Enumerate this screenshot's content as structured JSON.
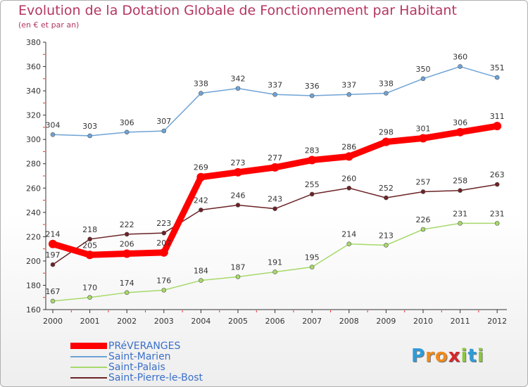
{
  "chart_data": {
    "type": "line",
    "title": "Evolution de la Dotation Globale de Fonctionnement par Habitant",
    "subtitle": "(en € et par an)",
    "xlabel": "",
    "ylabel": "",
    "ylim": [
      160,
      380
    ],
    "yticks": [
      160,
      180,
      200,
      220,
      240,
      260,
      280,
      300,
      320,
      340,
      360,
      380
    ],
    "x": [
      "2000",
      "2001",
      "2002",
      "2003",
      "2004",
      "2005",
      "2006",
      "2007",
      "2008",
      "2009",
      "2010",
      "2011",
      "2012"
    ],
    "series": [
      {
        "name": "Saint-Marien",
        "color": "#6fa3d6",
        "highlight": false,
        "values": [
          304,
          303,
          306,
          307,
          338,
          342,
          337,
          336,
          337,
          338,
          350,
          360,
          351
        ]
      },
      {
        "name": "Saint-Pierre-le-Bost",
        "color": "#6b2226",
        "highlight": false,
        "values": [
          197,
          218,
          222,
          223,
          242,
          246,
          243,
          255,
          260,
          252,
          257,
          258,
          263
        ]
      },
      {
        "name": "Saint-Palais",
        "color": "#a6d96a",
        "highlight": false,
        "values": [
          167,
          170,
          174,
          176,
          184,
          187,
          191,
          195,
          214,
          213,
          226,
          231,
          231
        ]
      },
      {
        "name": "PRéVERANGES",
        "color": "#ff0000",
        "highlight": true,
        "values": [
          214,
          205,
          206,
          207,
          269,
          273,
          277,
          283,
          286,
          298,
          301,
          306,
          311
        ]
      }
    ],
    "legend": [
      "PRéVERANGES",
      "Saint-Marien",
      "Saint-Palais",
      "Saint-Pierre-le-Bost"
    ],
    "legend_position": "bottom-left",
    "grid": false
  },
  "logo": {
    "letters": [
      "P",
      "r",
      "o",
      "x",
      "i",
      "t",
      "i"
    ],
    "colors": [
      "#2f9bd8",
      "#f08a1c",
      "#f08a1c",
      "#d7262a",
      "#8cc63f",
      "#2f9bd8",
      "#8cc63f"
    ]
  }
}
